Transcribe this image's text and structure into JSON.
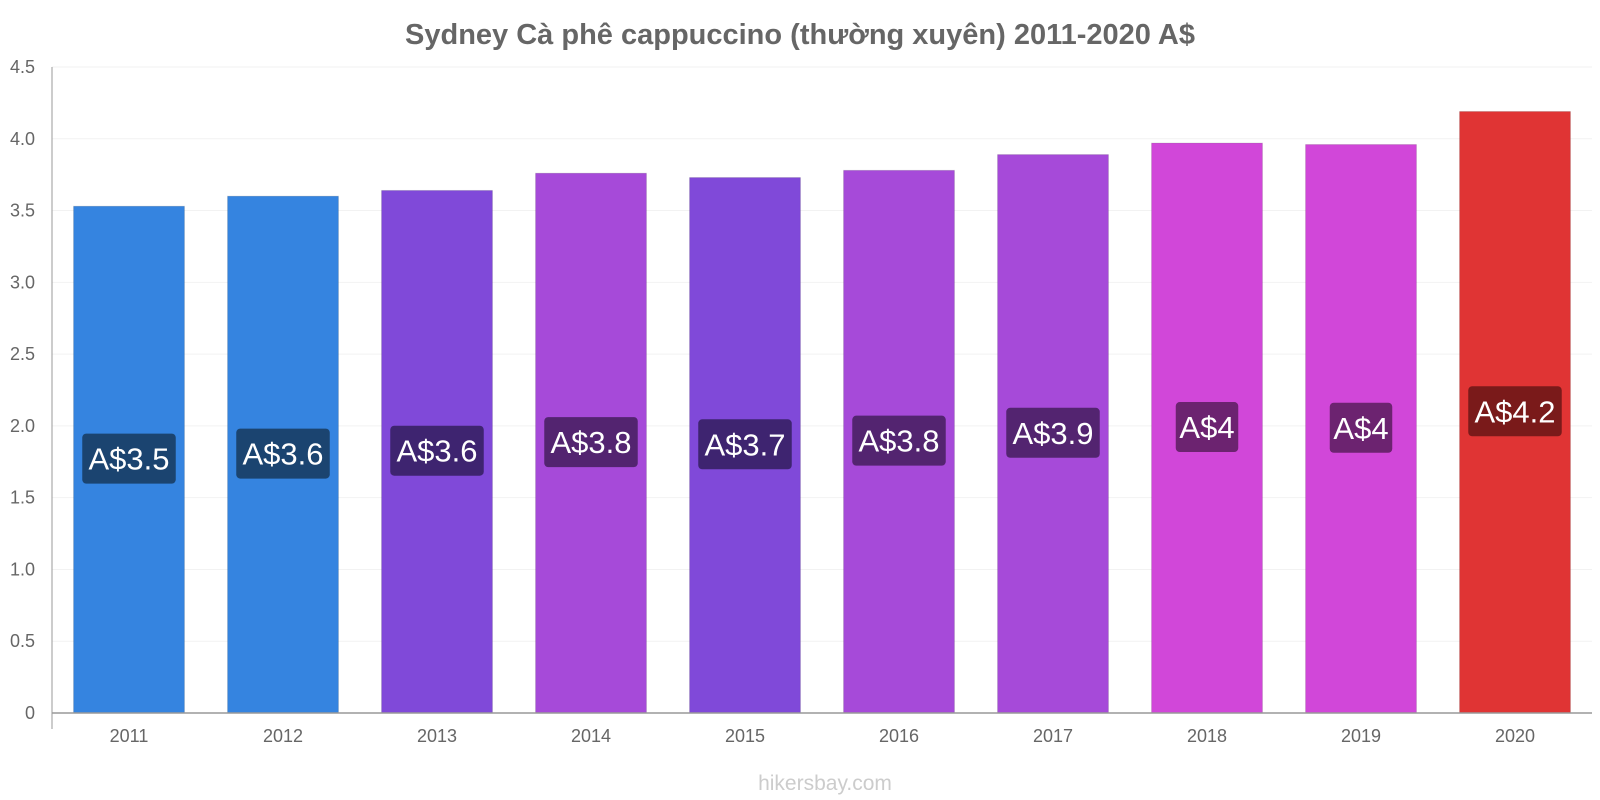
{
  "chart_data": {
    "type": "bar",
    "title": "Sydney Cà phê cappuccino (thường xuyên) 2011-2020 A$",
    "categories": [
      "2011",
      "2012",
      "2013",
      "2014",
      "2015",
      "2016",
      "2017",
      "2018",
      "2019",
      "2020"
    ],
    "values": [
      3.53,
      3.6,
      3.64,
      3.76,
      3.73,
      3.78,
      3.89,
      3.97,
      3.96,
      4.19
    ],
    "data_labels": [
      "A$3.5",
      "A$3.6",
      "A$3.6",
      "A$3.8",
      "A$3.7",
      "A$3.8",
      "A$3.9",
      "A$4",
      "A$4",
      "A$4.2"
    ],
    "bar_colors": [
      "#3584e0",
      "#3584e0",
      "#8049d9",
      "#a64ad9",
      "#8049d9",
      "#a64ad9",
      "#a64ad9",
      "#d147d9",
      "#d147d9",
      "#e03434"
    ],
    "label_colors": [
      "#1b4470",
      "#1b4470",
      "#3e2470",
      "#532470",
      "#3e2470",
      "#532470",
      "#532470",
      "#6c2370",
      "#6c2370",
      "#7a1a1a"
    ],
    "ylim": [
      0,
      4.5
    ],
    "yticks": [
      0,
      0.5,
      1.0,
      1.5,
      2.0,
      2.5,
      3.0,
      3.5,
      4.0,
      4.5
    ],
    "ytick_labels": [
      "0",
      "0.5",
      "1.0",
      "1.5",
      "2.0",
      "2.5",
      "3.0",
      "3.5",
      "4.0",
      "4.5"
    ],
    "xlabel": "",
    "ylabel": "",
    "grid": true,
    "legend": "none"
  },
  "footer": "hikersbay.com"
}
